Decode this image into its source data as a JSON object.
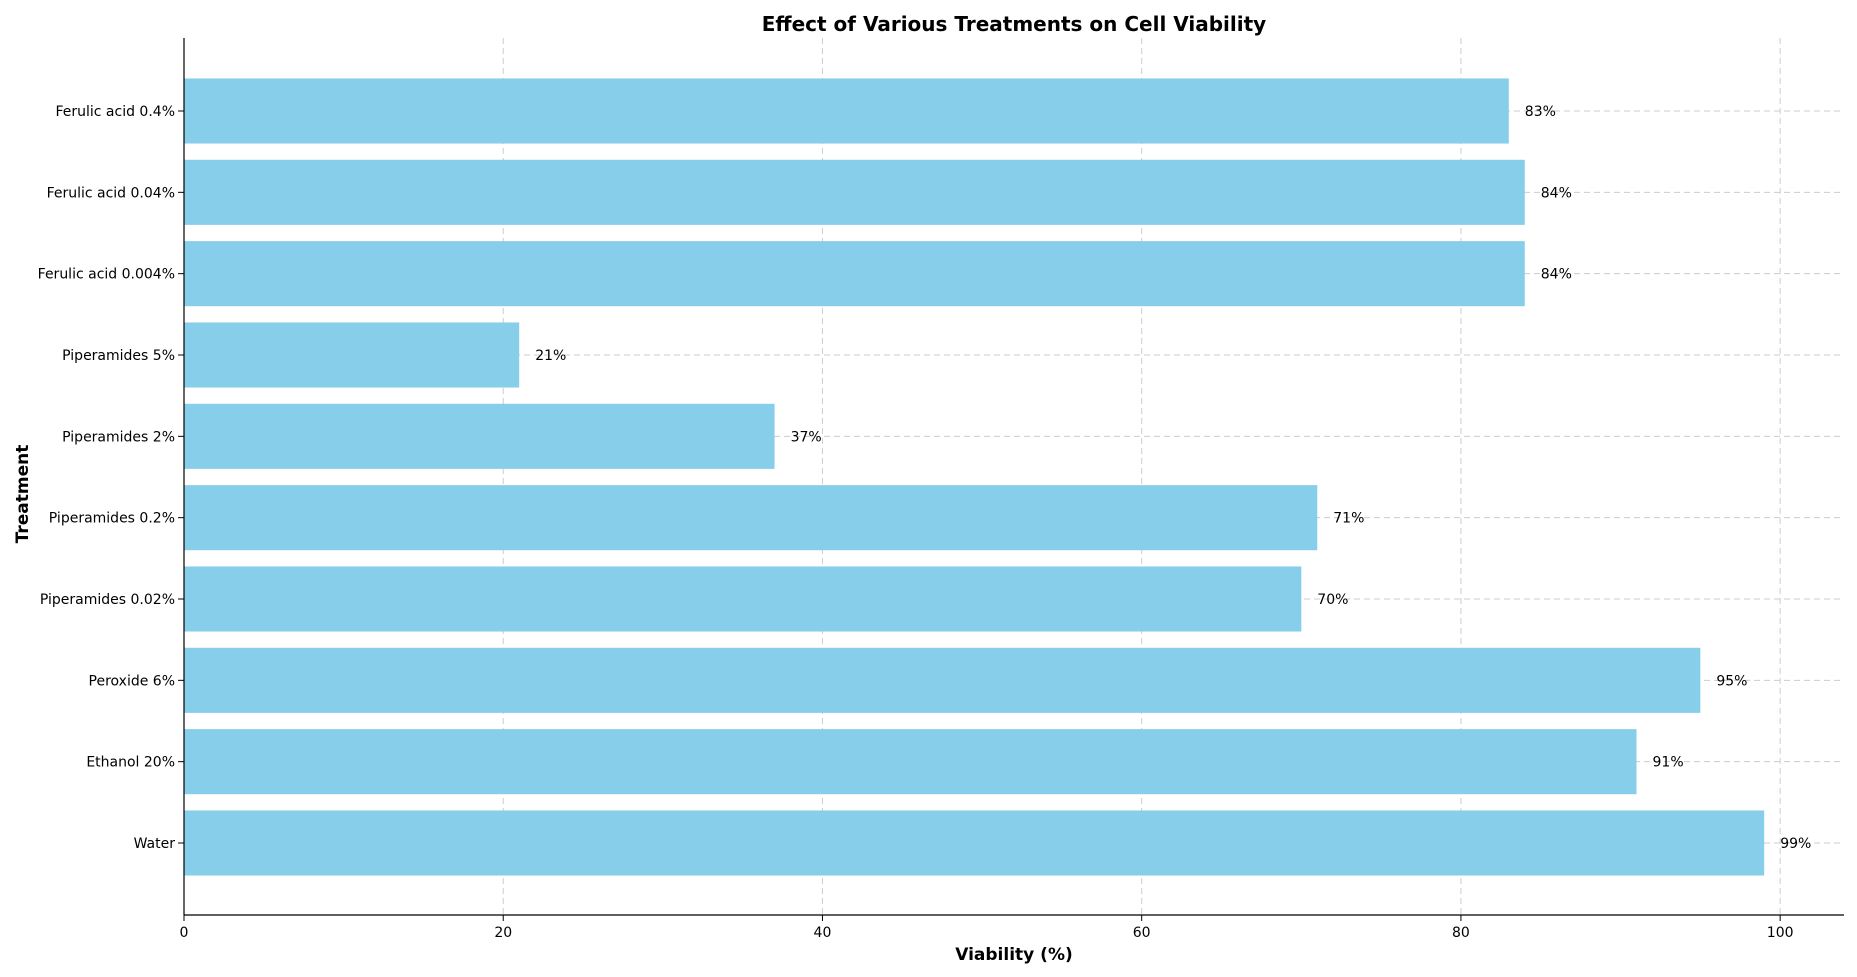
{
  "chart_data": {
    "type": "bar",
    "orientation": "horizontal",
    "title": "Effect of Various Treatments on Cell Viability",
    "xlabel": "Viability (%)",
    "ylabel": "Treatment",
    "categories": [
      "Water",
      "Ethanol 20%",
      "Peroxide 6%",
      "Piperamides 0.02%",
      "Piperamides 0.2%",
      "Piperamides 2%",
      "Piperamides 5%",
      "Ferulic acid 0.004%",
      "Ferulic acid 0.04%",
      "Ferulic acid 0.4%"
    ],
    "values": [
      99,
      91,
      95,
      70,
      71,
      37,
      21,
      84,
      84,
      83
    ],
    "value_labels": [
      "99%",
      "91%",
      "95%",
      "70%",
      "71%",
      "37%",
      "21%",
      "84%",
      "84%",
      "83%"
    ],
    "xlim": [
      0,
      104
    ],
    "xticks": [
      0,
      20,
      40,
      60,
      80,
      100
    ],
    "xtick_labels": [
      "0",
      "20",
      "40",
      "60",
      "80",
      "100"
    ],
    "grid": true,
    "bar_color": "#87ceeb"
  }
}
